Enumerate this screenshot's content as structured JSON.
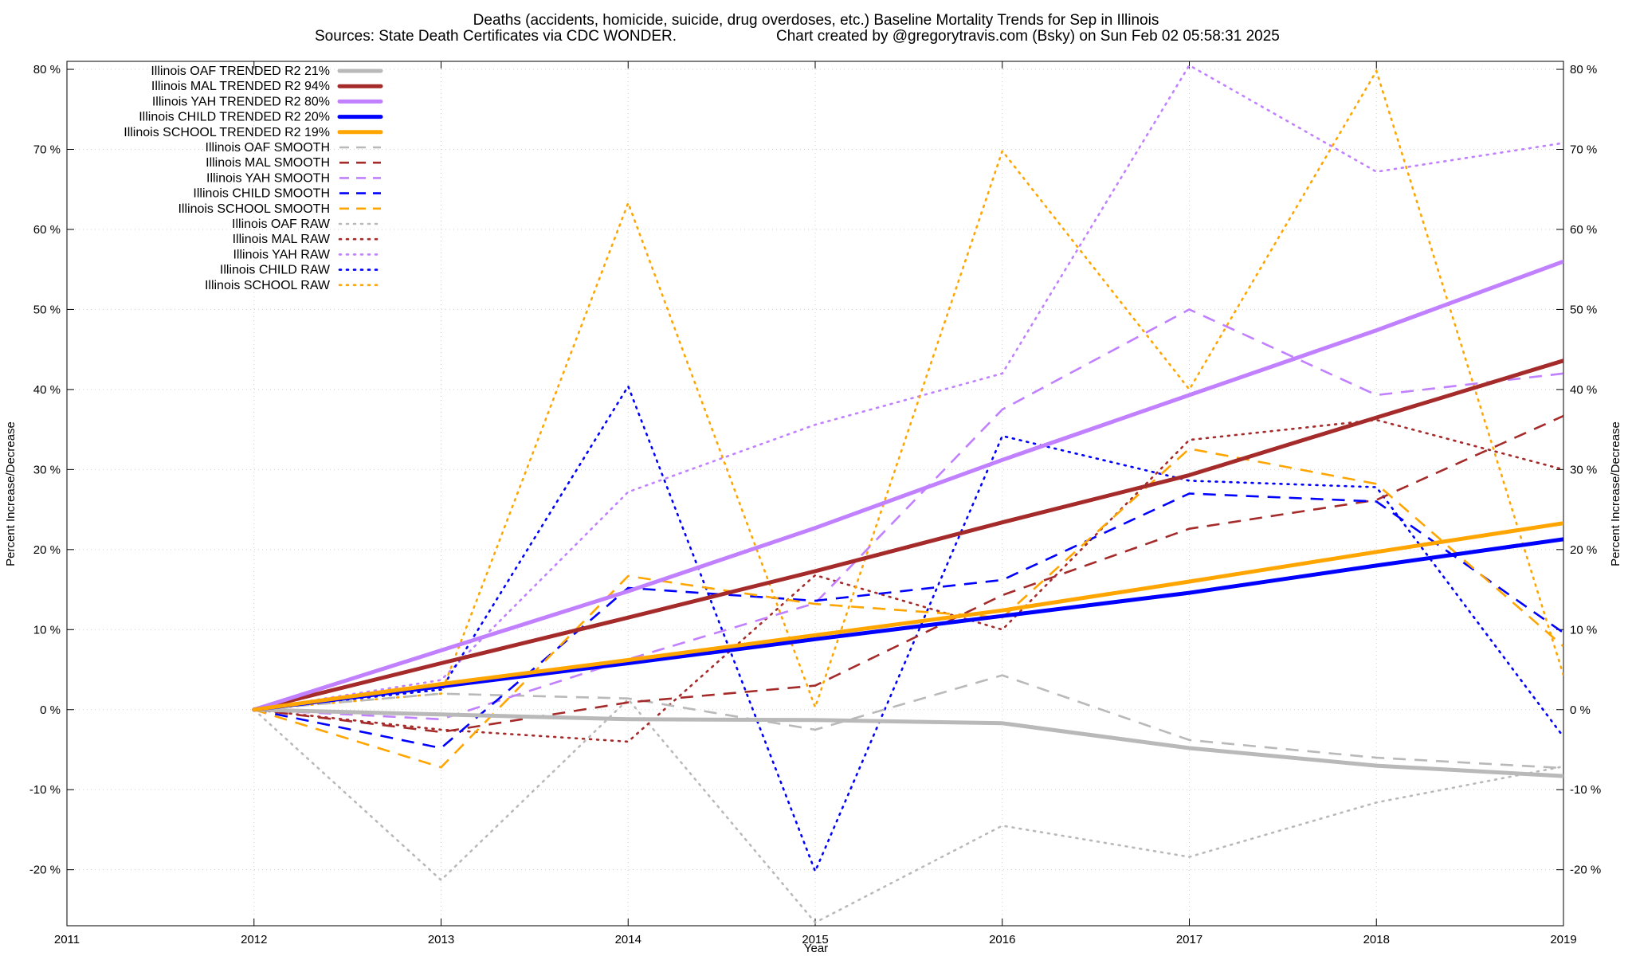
{
  "chart_data": {
    "type": "line",
    "title": "Deaths (accidents, homicide, suicide, drug overdoses, etc.)  Baseline Mortality Trends for Sep in Illinois",
    "subtitle_left": "Sources: State Death Certificates via CDC WONDER.",
    "subtitle_right": "Chart created by @gregorytravis.com (Bsky) on Sun Feb 02 05:58:31 2025",
    "xlabel": "Year",
    "ylabel_left": "Percent Increase/Decrease",
    "ylabel_right": "Percent Increase/Decrease",
    "xlim": [
      2011,
      2019
    ],
    "ylim": [
      -27,
      81
    ],
    "x_ticks": [
      "2011",
      "2012",
      "2013",
      "2014",
      "2015",
      "2016",
      "2017",
      "2018",
      "2019"
    ],
    "y_ticks": [
      {
        "value": 80,
        "label": "80 %"
      },
      {
        "value": 70,
        "label": "70 %"
      },
      {
        "value": 60,
        "label": "60 %"
      },
      {
        "value": 50,
        "label": "50 %"
      },
      {
        "value": 40,
        "label": "40 %"
      },
      {
        "value": 30,
        "label": "30 %"
      },
      {
        "value": 20,
        "label": "20 %"
      },
      {
        "value": 10,
        "label": "10 %"
      },
      {
        "value": 0,
        "label": "0 %"
      },
      {
        "value": -10,
        "label": "-10 %"
      },
      {
        "value": -20,
        "label": "-20 %"
      }
    ],
    "grid": true,
    "legend_position": "top-left",
    "x": [
      2012,
      2013,
      2014,
      2015,
      2016,
      2017,
      2018,
      2019
    ],
    "series": [
      {
        "name": "Illinois OAF TRENDED R2  21%",
        "style": "solid",
        "color": "#b9b9b9",
        "values": [
          0,
          -0.6,
          -1.2,
          -1.3,
          -1.7,
          -4.8,
          -7.0,
          -8.3
        ]
      },
      {
        "name": "Illinois MAL TRENDED R2  94%",
        "style": "solid",
        "color": "#a52a2a",
        "values": [
          0,
          5.8,
          11.5,
          17.3,
          23.4,
          29.3,
          36.5,
          43.6
        ]
      },
      {
        "name": "Illinois YAH TRENDED R2  80%",
        "style": "solid",
        "color": "#c080ff",
        "values": [
          0,
          7.4,
          14.8,
          22.7,
          31.2,
          39.3,
          47.4,
          56.0
        ]
      },
      {
        "name": "Illinois CHILD TRENDED R2  20%",
        "style": "solid",
        "color": "#0000ff",
        "values": [
          0,
          2.9,
          5.8,
          8.8,
          11.7,
          14.6,
          18.0,
          21.3
        ]
      },
      {
        "name": "Illinois SCHOOL TRENDED R2  19%",
        "style": "solid",
        "color": "#ffa500",
        "values": [
          0,
          3.2,
          6.2,
          9.3,
          12.4,
          16.0,
          19.7,
          23.3
        ]
      },
      {
        "name": "Illinois OAF SMOOTH",
        "style": "dashed",
        "color": "#b9b9b9",
        "values": [
          0,
          2.0,
          1.4,
          -2.5,
          4.3,
          -3.8,
          -6.0,
          -7.3
        ]
      },
      {
        "name": "Illinois MAL SMOOTH",
        "style": "dashed",
        "color": "#a52a2a",
        "values": [
          0,
          -2.8,
          0.9,
          3.0,
          14.3,
          22.6,
          26.2,
          36.7
        ]
      },
      {
        "name": "Illinois YAH SMOOTH",
        "style": "dashed",
        "color": "#c080ff",
        "values": [
          0,
          -1.2,
          6.3,
          13.3,
          37.5,
          50.0,
          39.3,
          42.0
        ]
      },
      {
        "name": "Illinois CHILD SMOOTH",
        "style": "dashed",
        "color": "#0000ff",
        "values": [
          0,
          -4.8,
          15.2,
          13.6,
          16.2,
          27.0,
          26.0,
          9.6
        ]
      },
      {
        "name": "Illinois SCHOOL SMOOTH",
        "style": "dashed",
        "color": "#ffa500",
        "values": [
          0,
          -7.2,
          16.7,
          13.2,
          11.5,
          32.6,
          28.2,
          7.9
        ]
      },
      {
        "name": "Illinois OAF RAW",
        "style": "dotted",
        "color": "#b9b9b9",
        "values": [
          0,
          -21.3,
          1.3,
          -26.6,
          -14.5,
          -18.4,
          -11.6,
          -7.1
        ]
      },
      {
        "name": "Illinois MAL RAW",
        "style": "dotted",
        "color": "#a52a2a",
        "values": [
          0,
          -2.5,
          -4.0,
          16.8,
          10.0,
          33.7,
          36.2,
          30.0
        ]
      },
      {
        "name": "Illinois YAH RAW",
        "style": "dotted",
        "color": "#c080ff",
        "values": [
          0,
          3.7,
          27.2,
          35.6,
          42.0,
          80.5,
          67.2,
          70.8
        ]
      },
      {
        "name": "Illinois CHILD RAW",
        "style": "dotted",
        "color": "#0000ff",
        "values": [
          0,
          2.5,
          40.4,
          -20.2,
          34.2,
          28.6,
          27.8,
          -3.4
        ]
      },
      {
        "name": "Illinois SCHOOL RAW",
        "style": "dotted",
        "color": "#ffa500",
        "values": [
          0,
          2.0,
          63.3,
          0.3,
          69.8,
          40.0,
          79.8,
          4.3
        ]
      }
    ]
  }
}
